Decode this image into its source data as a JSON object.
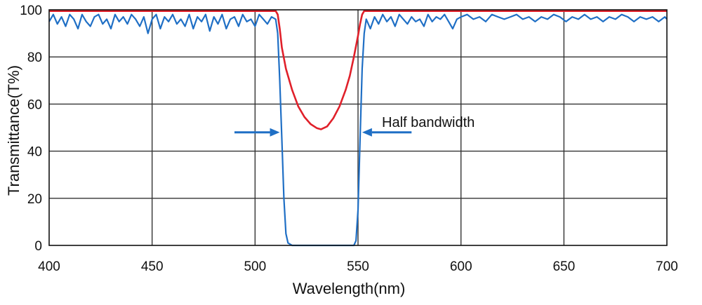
{
  "chart_data": {
    "type": "line",
    "xlabel": "Wavelength(nm)",
    "ylabel": "Transmittance(T%)",
    "xlim": [
      400,
      700
    ],
    "ylim": [
      0,
      100
    ],
    "x_ticks": [
      400,
      450,
      500,
      550,
      600,
      650,
      700
    ],
    "y_ticks": [
      0,
      20,
      40,
      60,
      80,
      100
    ],
    "grid": true,
    "colors": {
      "red_series": "#e0202a",
      "blue_series": "#1f6fc5",
      "arrow": "#1f6fc5",
      "grid": "#333333"
    },
    "annotations": [
      {
        "text": "Half bandwidth",
        "arrows": [
          {
            "from": 490,
            "to": 512,
            "y": 48
          },
          {
            "from": 576,
            "to": 552,
            "y": 48
          }
        ]
      }
    ],
    "series": [
      {
        "color": "#e0202a",
        "x": [
          400,
          510,
          511,
          512,
          513,
          515,
          518,
          521,
          524,
          527,
          530,
          532,
          535,
          538,
          541,
          544,
          546,
          548,
          550,
          551,
          552,
          553,
          555,
          700
        ],
        "y": [
          99.5,
          99.5,
          98,
          92,
          84,
          75,
          66,
          59,
          54.5,
          51.5,
          49.8,
          49.3,
          50.5,
          54,
          59,
          66,
          72,
          80,
          89,
          94,
          98,
          99.5,
          99.5,
          99.5
        ]
      },
      {
        "color": "#1f6fc5",
        "x": [
          400,
          402,
          404,
          406,
          408,
          410,
          412,
          414,
          416,
          418,
          420,
          422,
          424,
          426,
          428,
          430,
          432,
          434,
          436,
          438,
          440,
          442,
          444,
          446,
          448,
          450,
          452,
          454,
          456,
          458,
          460,
          462,
          464,
          466,
          468,
          470,
          472,
          474,
          476,
          478,
          480,
          482,
          484,
          486,
          488,
          490,
          492,
          494,
          496,
          498,
          500,
          502,
          504,
          506,
          508,
          510,
          511,
          512,
          513,
          514,
          515,
          516,
          518,
          520,
          525,
          530,
          535,
          540,
          545,
          548,
          549,
          550,
          551,
          552,
          553,
          554,
          556,
          558,
          560,
          562,
          564,
          566,
          568,
          570,
          572,
          574,
          576,
          578,
          580,
          582,
          584,
          586,
          588,
          590,
          592,
          594,
          596,
          598,
          600,
          603,
          606,
          609,
          612,
          615,
          618,
          621,
          624,
          627,
          630,
          633,
          636,
          639,
          642,
          645,
          648,
          651,
          654,
          657,
          660,
          663,
          666,
          669,
          672,
          675,
          678,
          681,
          684,
          687,
          690,
          693,
          696,
          699,
          700
        ],
        "y": [
          95,
          98,
          94,
          97,
          93,
          98,
          96,
          92,
          98,
          95,
          93,
          97,
          98,
          94,
          96,
          92,
          98,
          95,
          97,
          94,
          98,
          96,
          93,
          97,
          90,
          96,
          98,
          92,
          97,
          95,
          98,
          94,
          96,
          93,
          98,
          92,
          97,
          95,
          98,
          91,
          97,
          94,
          98,
          92,
          96,
          97,
          93,
          98,
          95,
          96,
          93,
          98,
          96,
          94,
          97,
          96,
          90,
          70,
          45,
          20,
          5,
          1,
          0,
          0,
          0,
          0,
          0,
          0,
          0,
          0,
          2,
          15,
          45,
          75,
          90,
          96,
          92,
          97,
          94,
          98,
          95,
          97,
          93,
          98,
          96,
          94,
          97,
          95,
          96,
          93,
          98,
          95,
          97,
          96,
          98,
          95,
          92,
          96,
          97,
          98,
          96,
          97,
          95,
          98,
          97,
          96,
          97,
          98,
          96,
          97,
          95,
          97,
          96,
          98,
          97,
          95,
          97,
          96,
          98,
          96,
          97,
          95,
          97,
          96,
          98,
          97,
          95,
          97,
          96,
          97,
          95,
          97,
          96
        ]
      }
    ]
  }
}
